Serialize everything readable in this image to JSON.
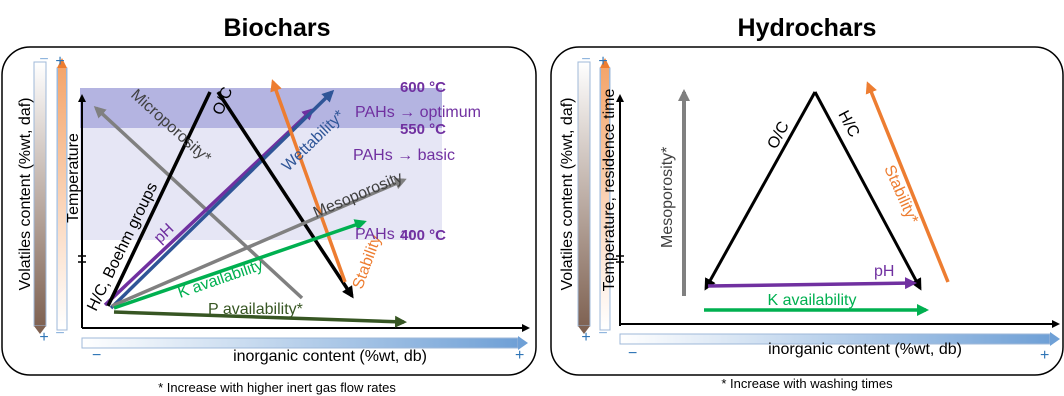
{
  "colors": {
    "black": "#000000",
    "gray": "#808080",
    "purple": "#7030a0",
    "blue": "#2f5597",
    "orange": "#ed7d31",
    "green": "#00b050",
    "darkgreen": "#375623",
    "band_light": "#e6e6f5",
    "band_dark": "#b4b4e1"
  },
  "left": {
    "title": "Biochars",
    "y_axis_label": "Volatiles content (%wt, daf)",
    "x_axis_label": "inorganic content (%wt, db)",
    "temperature_label": "Temperature",
    "vertical_labels": [
      "H/C, Boehm groups",
      "pH"
    ],
    "diagonal_labels": {
      "microporosity": "Microporosity*",
      "oc": "O/C",
      "wettability": "Wettability*",
      "mesoporosity": "Mesoporosity",
      "k_availability": "K availability",
      "stability": "Stability",
      "p_availability": "P availability*"
    },
    "bands": [
      {
        "temp": "600 °C",
        "note": "PAHs → optimum"
      },
      {
        "temp": "550 °C",
        "note": "PAHs → basic"
      },
      {
        "temp": "400 °C",
        "note": "PAHs ↑↑"
      }
    ],
    "footnote": "* Increase with higher inert gas flow rates"
  },
  "right": {
    "title": "Hydrochars",
    "y_axis_label": "Volatiles content (%wt, daf)",
    "temperature_label": "Temperature, residence time",
    "x_axis_label": "inorganic content (%wt, db)",
    "labels": {
      "mesoporosity": "Mesoporosity*",
      "oc": "O/C",
      "hc": "H/C",
      "stability": "Stability*",
      "ph": "pH",
      "k_availability": "K availability"
    },
    "footnote": "* Increase with washing times"
  },
  "symbols": {
    "minus": "−",
    "plus": "+"
  }
}
